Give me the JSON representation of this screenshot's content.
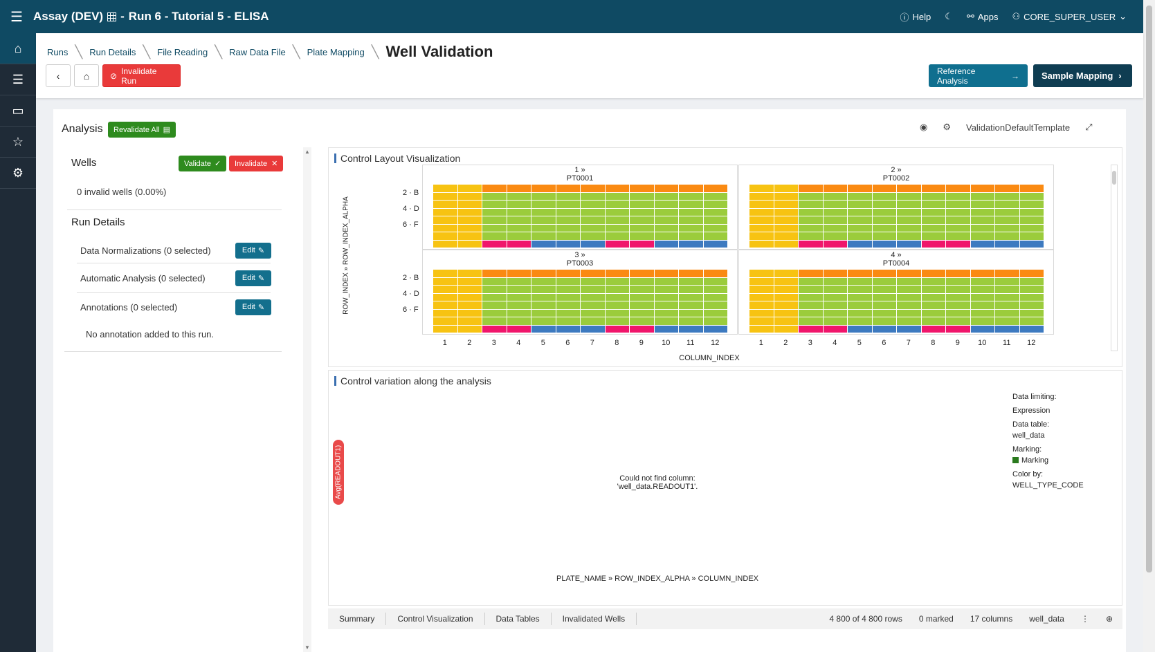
{
  "topbar": {
    "title": "Assay (DEV)",
    "subtitle": "Run 6 - Tutorial 5 - ELISA",
    "help": "Help",
    "apps": "Apps",
    "user": "CORE_SUPER_USER"
  },
  "breadcrumbs": [
    "Runs",
    "Run Details",
    "File Reading",
    "Raw Data File",
    "Plate Mapping"
  ],
  "page_title": "Well Validation",
  "buttons": {
    "invalidate_run": "Invalidate Run",
    "reference_analysis": "Reference Analysis",
    "sample_mapping": "Sample Mapping",
    "revalidate_all": "Revalidate All",
    "validate": "Validate",
    "invalidate": "Invalidate",
    "edit": "Edit"
  },
  "analysis": {
    "title": "Analysis",
    "template": "ValidationDefaultTemplate"
  },
  "wells": {
    "title": "Wells",
    "invalid_text": "0 invalid wells (0.00%)"
  },
  "run_details": {
    "title": "Run Details",
    "rows": [
      {
        "label": "Data Normalizations (0 selected)"
      },
      {
        "label": "Automatic Analysis (0 selected)"
      },
      {
        "label": "Annotations (0 selected)"
      }
    ],
    "no_annotation": "No annotation added to this run."
  },
  "viz1": {
    "title": "Control Layout Visualization",
    "y_axis_label": "ROW_INDEX » ROW_INDEX_ALPHA",
    "x_axis_label": "COLUMN_INDEX",
    "plates": [
      {
        "index": "1 »",
        "name": "PT0001"
      },
      {
        "index": "2 »",
        "name": "PT0002"
      },
      {
        "index": "3 »",
        "name": "PT0003"
      },
      {
        "index": "4 »",
        "name": "PT0004"
      }
    ],
    "row_labels": [
      "2 · B",
      "4 · D",
      "6 · F"
    ],
    "columns": [
      "1",
      "2",
      "3",
      "4",
      "5",
      "6",
      "7",
      "8",
      "9",
      "10",
      "11",
      "12"
    ],
    "colors": {
      "yellow": "#f7c312",
      "orange": "#fa8a12",
      "green": "#9bcc3c",
      "pink": "#f0166b",
      "blue": "#3d7ac0"
    }
  },
  "viz2": {
    "title": "Control variation along the analysis",
    "y_axis_pill": "Avg(READOUT1)",
    "message": "Could not find column: 'well_data.READOUT1'.",
    "x_axis_label": "PLATE_NAME » ROW_INDEX_ALPHA » COLUMN_INDEX",
    "legend": {
      "data_limiting": "Data limiting:",
      "expression": "Expression",
      "data_table_label": "Data table:",
      "data_table_value": "well_data",
      "marking_label": "Marking:",
      "marking_value": "Marking",
      "color_by_label": "Color by:",
      "color_by_value": "WELL_TYPE_CODE"
    }
  },
  "tabs": {
    "items": [
      "Summary",
      "Control Visualization",
      "Data Tables",
      "Invalidated Wells"
    ],
    "rows": "4 800 of 4 800 rows",
    "marked": "0 marked",
    "columns": "17 columns",
    "table": "well_data"
  }
}
